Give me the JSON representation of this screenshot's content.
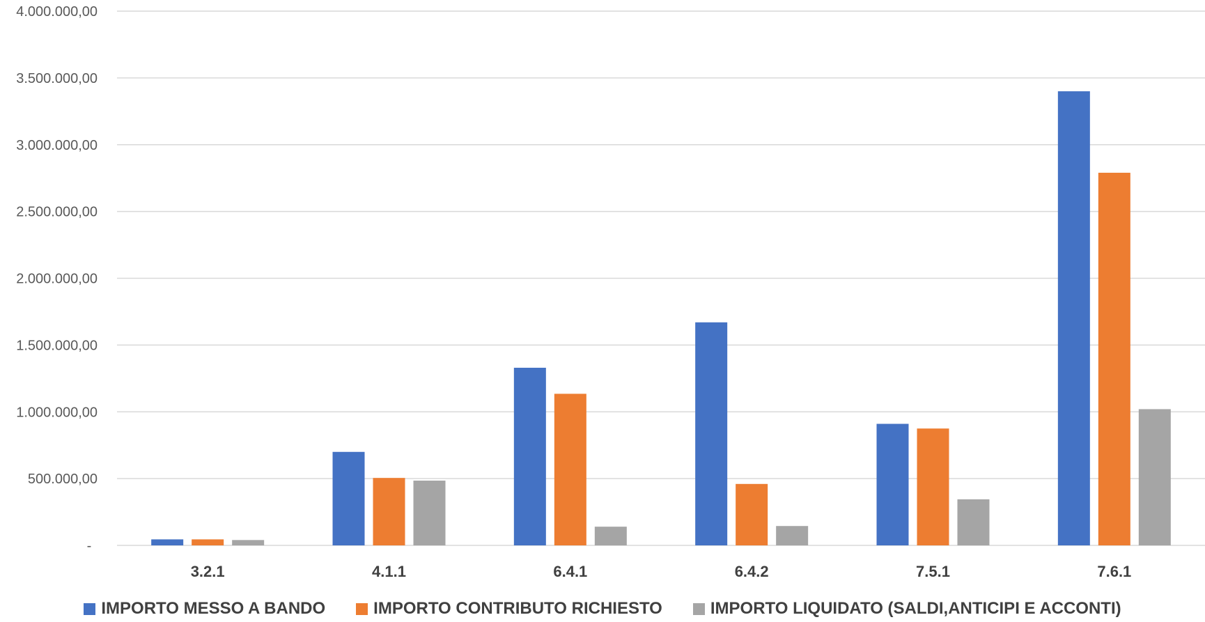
{
  "chart_data": {
    "type": "bar",
    "categories": [
      "3.2.1",
      "4.1.1",
      "6.4.1",
      "6.4.2",
      "7.5.1",
      "7.6.1"
    ],
    "series": [
      {
        "name": "IMPORTO MESSO A BANDO",
        "color": "#4472C4",
        "values": [
          45000,
          700000,
          1330000,
          1670000,
          910000,
          3400000
        ]
      },
      {
        "name": "IMPORTO CONTRIBUTO RICHIESTO",
        "color": "#ED7D31",
        "values": [
          45000,
          505000,
          1135000,
          460000,
          875000,
          2790000
        ]
      },
      {
        "name": "IMPORTO LIQUIDATO (SALDI,ANTICIPI E ACCONTI)",
        "color": "#A5A5A5",
        "values": [
          40000,
          485000,
          140000,
          145000,
          345000,
          1020000
        ]
      }
    ],
    "y_ticks": [
      "-",
      "500.000,00",
      "1.000.000,00",
      "1.500.000,00",
      "2.000.000,00",
      "2.500.000,00",
      "3.000.000,00",
      "3.500.000,00",
      "4.000.000,00"
    ],
    "ylim": [
      0,
      4000000
    ],
    "grid": true,
    "legend_position": "bottom",
    "title": "",
    "xlabel": "",
    "ylabel": ""
  }
}
